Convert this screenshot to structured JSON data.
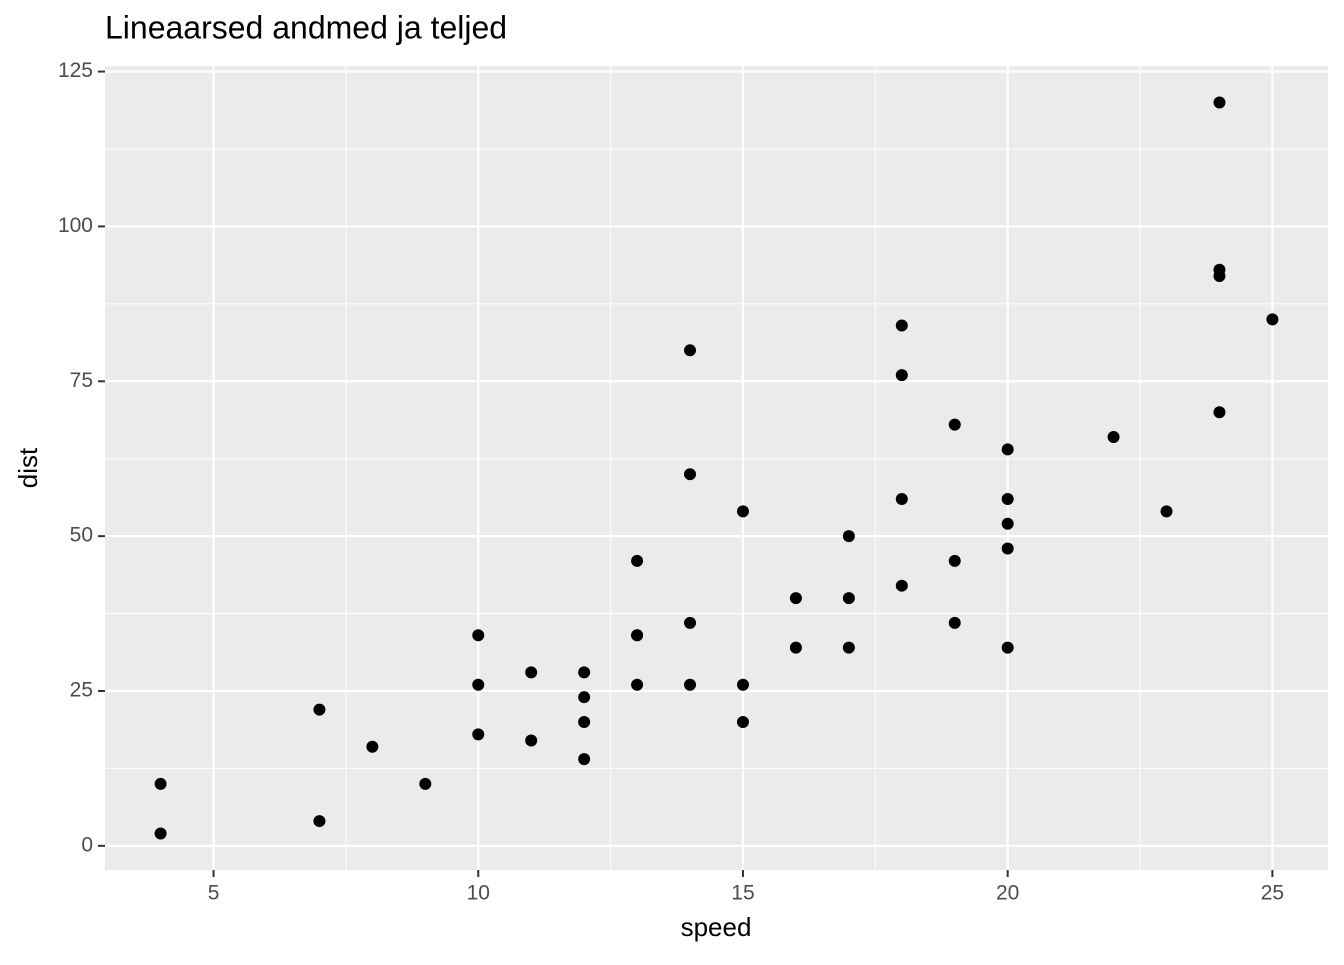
{
  "chart_data": {
    "type": "scatter",
    "title": "Lineaarsed andmed ja teljed",
    "x_label": "speed",
    "y_label": "dist",
    "x": [
      4,
      4,
      7,
      7,
      8,
      9,
      10,
      10,
      10,
      11,
      11,
      12,
      12,
      12,
      12,
      13,
      13,
      13,
      13,
      14,
      14,
      14,
      14,
      15,
      15,
      15,
      16,
      16,
      17,
      17,
      17,
      18,
      18,
      18,
      18,
      19,
      19,
      19,
      20,
      20,
      20,
      20,
      20,
      22,
      23,
      24,
      24,
      24,
      24,
      25
    ],
    "values": [
      2,
      10,
      4,
      22,
      16,
      10,
      18,
      26,
      34,
      17,
      28,
      14,
      20,
      24,
      28,
      26,
      34,
      34,
      46,
      26,
      36,
      60,
      80,
      20,
      26,
      54,
      32,
      40,
      32,
      40,
      50,
      42,
      56,
      76,
      84,
      36,
      46,
      68,
      32,
      48,
      52,
      56,
      64,
      66,
      54,
      70,
      92,
      93,
      120,
      85
    ],
    "color": "#000000",
    "xlim": [
      2.95,
      26.05
    ],
    "ylim": [
      -3.9,
      125.9
    ],
    "xticks": [
      5,
      10,
      15,
      20,
      25
    ],
    "yticks": [
      0,
      25,
      50,
      75,
      100,
      125
    ],
    "xminor": [
      7.5,
      12.5,
      17.5,
      22.5
    ],
    "yminor": [
      12.5,
      37.5,
      62.5,
      87.5,
      112.5
    ],
    "grid": true
  }
}
